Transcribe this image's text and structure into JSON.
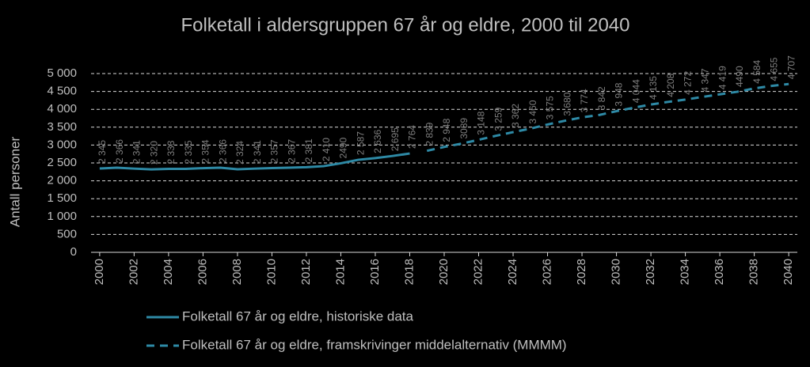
{
  "chart_data": {
    "type": "line",
    "title": "Folketall i aldersgruppen 67 år og eldre, 2000 til 2040",
    "y_label": "Antall personer",
    "x": [
      2000,
      2001,
      2002,
      2003,
      2004,
      2005,
      2006,
      2007,
      2008,
      2009,
      2010,
      2011,
      2012,
      2013,
      2014,
      2015,
      2016,
      2017,
      2018,
      2019,
      2020,
      2021,
      2022,
      2023,
      2024,
      2025,
      2026,
      2027,
      2028,
      2029,
      2030,
      2031,
      2032,
      2033,
      2034,
      2035,
      2036,
      2037,
      2038,
      2039,
      2040
    ],
    "xlim": [
      1999.5,
      2040.5
    ],
    "xticks": [
      2000,
      2002,
      2004,
      2006,
      2008,
      2010,
      2012,
      2014,
      2016,
      2018,
      2020,
      2022,
      2024,
      2026,
      2028,
      2030,
      2032,
      2034,
      2036,
      2038,
      2040
    ],
    "ylim": [
      0,
      5000
    ],
    "yticks": [
      0,
      {
        "value": 500,
        "label": "500"
      },
      {
        "value": 1000,
        "label": "1 000"
      },
      {
        "value": 1500,
        "label": "1 500"
      },
      {
        "value": 2000,
        "label": "2 000"
      },
      {
        "value": 2500,
        "label": "2 500"
      },
      {
        "value": 3000,
        "label": "3 000"
      },
      {
        "value": 3500,
        "label": "3 500"
      },
      {
        "value": 4000,
        "label": "4 000"
      },
      {
        "value": 4500,
        "label": "4 500"
      },
      {
        "value": 5000,
        "label": "5 000"
      }
    ],
    "grid": true,
    "series": [
      {
        "name": "Folketall 67 år og eldre, historiske data",
        "color": "#2e8aa6",
        "dash": false,
        "values": [
          2345,
          2366,
          2341,
          2320,
          2333,
          2335,
          2354,
          2366,
          2324,
          2341,
          2357,
          2367,
          2381,
          2410,
          2490,
          2587,
          2636,
          2695,
          2764,
          null,
          null,
          null,
          null,
          null,
          null,
          null,
          null,
          null,
          null,
          null,
          null,
          null,
          null,
          null,
          null,
          null,
          null,
          null,
          null,
          null,
          null
        ],
        "value_labels": [
          "2 345",
          "2 366",
          "2 341",
          "2 320",
          "2 333",
          "2 335",
          "2 354",
          "2 366",
          "2 324",
          "2 341",
          "2 357",
          "2 367",
          "2 381",
          "2 410",
          "2490",
          "2 587",
          "2 636",
          "2 695",
          "2 764",
          null,
          null,
          null,
          null,
          null,
          null,
          null,
          null,
          null,
          null,
          null,
          null,
          null,
          null,
          null,
          null,
          null,
          null,
          null,
          null,
          null,
          null
        ]
      },
      {
        "name": "Folketall 67 år og eldre, framskrivinger middelalternativ (MMMM)",
        "color": "#2e8aa6",
        "dash": true,
        "values": [
          null,
          null,
          null,
          null,
          null,
          null,
          null,
          null,
          null,
          null,
          null,
          null,
          null,
          null,
          null,
          null,
          null,
          null,
          null,
          2839,
          2948,
          3039,
          3148,
          3259,
          3362,
          3460,
          3575,
          3680,
          3774,
          3842,
          3948,
          4044,
          4135,
          4208,
          4272,
          4347,
          4419,
          4490,
          4584,
          4655,
          4707
        ],
        "value_labels": [
          null,
          null,
          null,
          null,
          null,
          null,
          null,
          null,
          null,
          null,
          null,
          null,
          null,
          null,
          null,
          null,
          null,
          null,
          null,
          "2 839",
          "2 948",
          "3039",
          "3 148",
          "3 259",
          "3 362",
          "3 460",
          "3 575",
          "3 680",
          "3 774",
          "3 842",
          "3 948",
          "4 044",
          "4 135",
          "4 208",
          "4 272",
          "4 347",
          "4 419",
          "4490",
          "4 584",
          "4 655",
          "4 707"
        ]
      }
    ]
  }
}
